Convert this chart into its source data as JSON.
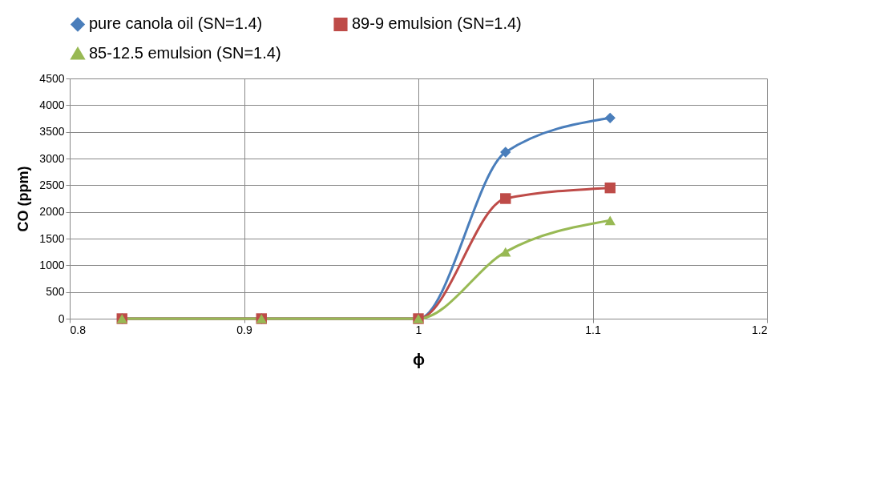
{
  "chart_data": {
    "type": "line",
    "xlabel": "ϕ",
    "ylabel": "CO (ppm)",
    "x": [
      0.83,
      0.91,
      1,
      1.05,
      1.11
    ],
    "series": [
      {
        "name": "pure canola oil (SN=1.4)",
        "color": "#4a7ebb",
        "marker": "diamond",
        "values": [
          0,
          0,
          0,
          3120,
          3760
        ]
      },
      {
        "name": "89-9 emulsion (SN=1.4)",
        "color": "#be4b48",
        "marker": "square",
        "values": [
          0,
          0,
          0,
          2250,
          2450
        ]
      },
      {
        "name": "85-12.5 emulsion (SN=1.4)",
        "color": "#98b954",
        "marker": "triangle",
        "values": [
          0,
          0,
          0,
          1250,
          1840
        ]
      }
    ],
    "xlim": [
      0.8,
      1.2
    ],
    "xticks": [
      0.8,
      0.9,
      1,
      1.1,
      1.2
    ],
    "ylim": [
      0,
      4500
    ],
    "yticks": [
      0,
      500,
      1000,
      1500,
      2000,
      2500,
      3000,
      3500,
      4000,
      4500
    ],
    "grid": true,
    "legend": "top",
    "line_style": "solid"
  }
}
